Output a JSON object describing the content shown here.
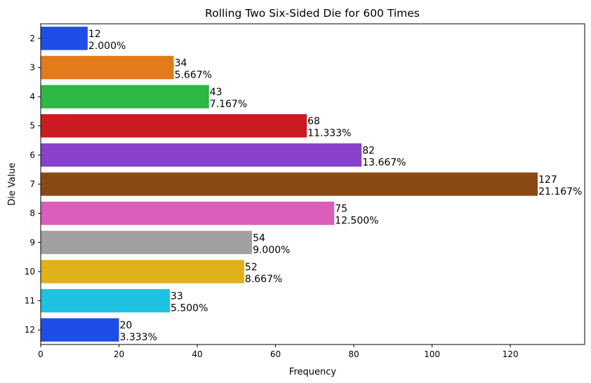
{
  "chart_data": {
    "type": "bar",
    "orientation": "horizontal",
    "title": "Rolling Two Six-Sided Die for 600 Times",
    "xlabel": "Frequency",
    "ylabel": "Die Value",
    "xlim": [
      0,
      139
    ],
    "xticks": [
      "0",
      "20",
      "40",
      "60",
      "80",
      "100",
      "120"
    ],
    "grid": false,
    "legend": "none",
    "categories": [
      "2",
      "3",
      "4",
      "5",
      "6",
      "7",
      "8",
      "9",
      "10",
      "11",
      "12"
    ],
    "values": [
      12,
      34,
      43,
      68,
      82,
      127,
      75,
      54,
      52,
      33,
      20
    ],
    "percent_labels": [
      "2.000%",
      "5.667%",
      "7.167%",
      "11.333%",
      "13.667%",
      "21.167%",
      "12.500%",
      "9.000%",
      "8.667%",
      "5.500%",
      "3.333%"
    ],
    "colors": [
      "#1f4de8",
      "#e37b1b",
      "#2db743",
      "#cc1b22",
      "#8741cb",
      "#8b4912",
      "#db5fba",
      "#a0a0a0",
      "#e1b11a",
      "#1ec2e0",
      "#1f4de8"
    ]
  }
}
